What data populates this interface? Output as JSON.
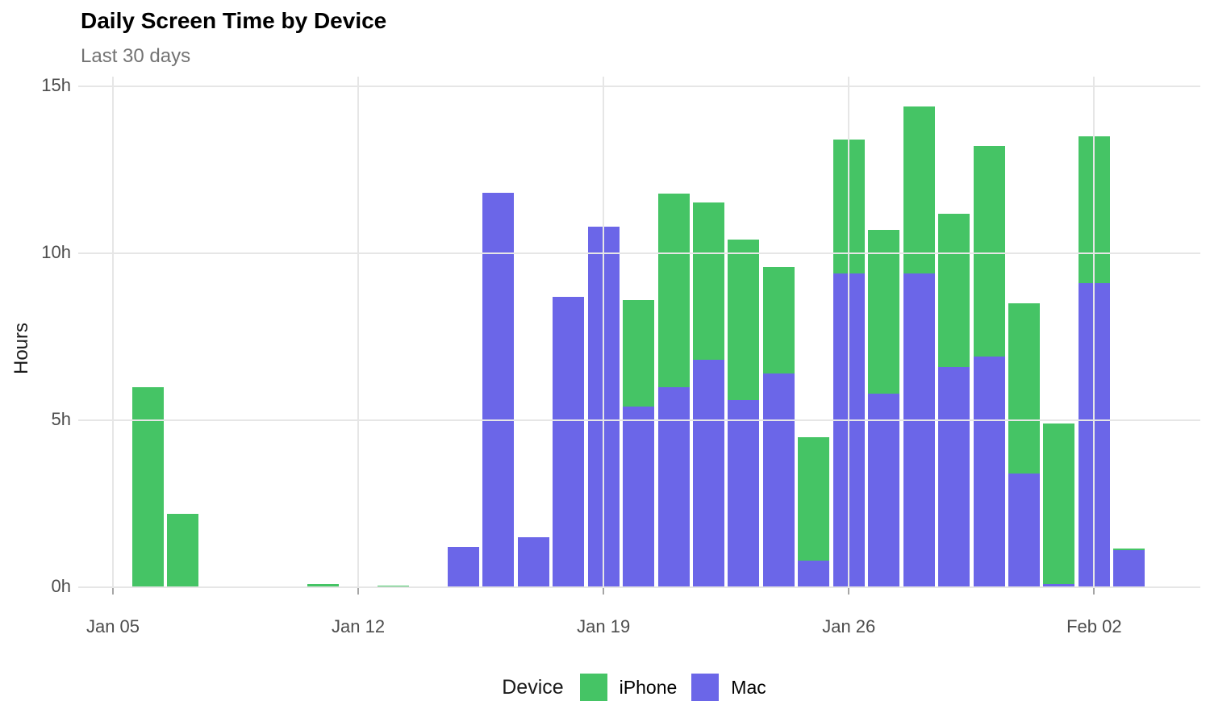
{
  "title": "Daily Screen Time by Device",
  "subtitle": "Last 30 days",
  "y_axis": {
    "label": "Hours",
    "tick_labels": [
      "0h",
      "5h",
      "10h",
      "15h"
    ],
    "tick_hours": [
      0,
      5,
      10,
      15
    ]
  },
  "x_axis": {
    "tick_labels": [
      "Jan 05",
      "Jan 12",
      "Jan 19",
      "Jan 26",
      "Feb 02"
    ],
    "tick_day_indices": [
      0,
      7,
      14,
      21,
      28
    ]
  },
  "legend": {
    "title": "Device",
    "items": [
      {
        "label": "iPhone",
        "color": "#45c465"
      },
      {
        "label": "Mac",
        "color": "#6b66e8"
      }
    ]
  },
  "colors": {
    "iphone_green": "#45c465",
    "mac_purple": "#6b66e8",
    "gridline": "#e6e6e6",
    "axis_text": "#4d4d4d",
    "subtitle_gray": "#737373"
  },
  "chart_data": {
    "type": "bar",
    "stacked": true,
    "stack_order_bottom_to_top": [
      "Mac",
      "iPhone"
    ],
    "title": "Daily Screen Time by Device",
    "subtitle": "Last 30 days",
    "xlabel": "",
    "ylabel": "Hours",
    "ylim": [
      0,
      15
    ],
    "grid": "major-only",
    "legend_position": "bottom",
    "categories": [
      "Jan 05",
      "Jan 06",
      "Jan 07",
      "Jan 08",
      "Jan 09",
      "Jan 10",
      "Jan 11",
      "Jan 12",
      "Jan 13",
      "Jan 14",
      "Jan 15",
      "Jan 16",
      "Jan 17",
      "Jan 18",
      "Jan 19",
      "Jan 20",
      "Jan 21",
      "Jan 22",
      "Jan 23",
      "Jan 24",
      "Jan 25",
      "Jan 26",
      "Jan 27",
      "Jan 28",
      "Jan 29",
      "Jan 30",
      "Jan 31",
      "Feb 01",
      "Feb 02",
      "Feb 03"
    ],
    "series": [
      {
        "name": "iPhone",
        "color": "#45c465",
        "values": [
          0,
          6.0,
          2.2,
          0,
          0,
          0,
          0.1,
          0,
          0.05,
          0,
          0,
          0,
          0,
          0,
          0,
          3.2,
          5.8,
          4.7,
          4.8,
          3.2,
          3.7,
          4.0,
          4.9,
          5.0,
          4.6,
          6.3,
          5.1,
          4.8,
          4.4,
          0.05
        ]
      },
      {
        "name": "Mac",
        "color": "#6b66e8",
        "values": [
          0,
          0,
          0,
          0,
          0,
          0,
          0,
          0,
          0,
          0,
          1.2,
          11.8,
          1.5,
          8.7,
          10.8,
          5.4,
          6.0,
          6.8,
          5.6,
          6.4,
          0.8,
          9.4,
          5.8,
          9.4,
          6.6,
          6.9,
          3.4,
          0.1,
          9.1,
          1.1
        ]
      }
    ]
  }
}
